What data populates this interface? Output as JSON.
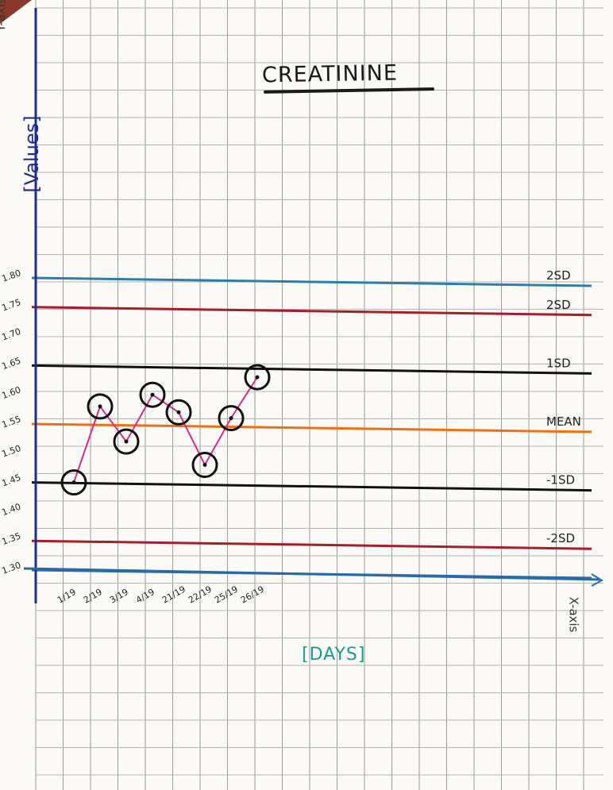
{
  "chart_data": {
    "type": "line",
    "title": "CREATININE",
    "ylabel": "[Values]",
    "xlabel": "[DAYS]",
    "y_axis_caption": "Y-axis",
    "x_axis_caption": "X-axis",
    "x_tick_labels": [
      "1/19",
      "2/19",
      "3/19",
      "4/19",
      "21/19",
      "22/19",
      "25/19",
      "26/19"
    ],
    "y_tick_labels": [
      "1.80",
      "1.75",
      "1.70",
      "1.65",
      "1.60",
      "1.55",
      "1.50",
      "1.45",
      "1.40",
      "1.35",
      "1.30"
    ],
    "ylim": [
      1.3,
      1.8
    ],
    "series": [
      {
        "values": [
          1.45,
          1.58,
          1.52,
          1.6,
          1.57,
          1.48,
          1.56,
          1.63
        ],
        "color": "#d42a8a"
      }
    ],
    "reference_lines": [
      {
        "label": "2SD",
        "value": 1.8,
        "color": "#2b7fa8"
      },
      {
        "label": "2SD",
        "value": 1.75,
        "color": "#a51f2a"
      },
      {
        "label": "1SD",
        "value": 1.65,
        "color": "#111111"
      },
      {
        "label": "MEAN",
        "value": 1.55,
        "color": "#f07010"
      },
      {
        "label": "-1SD",
        "value": 1.45,
        "color": "#111111"
      },
      {
        "label": "-2SD",
        "value": 1.35,
        "color": "#a51f2a"
      },
      {
        "label": "",
        "value": 1.3,
        "color": "#2b6aa8"
      }
    ],
    "grid": true
  }
}
